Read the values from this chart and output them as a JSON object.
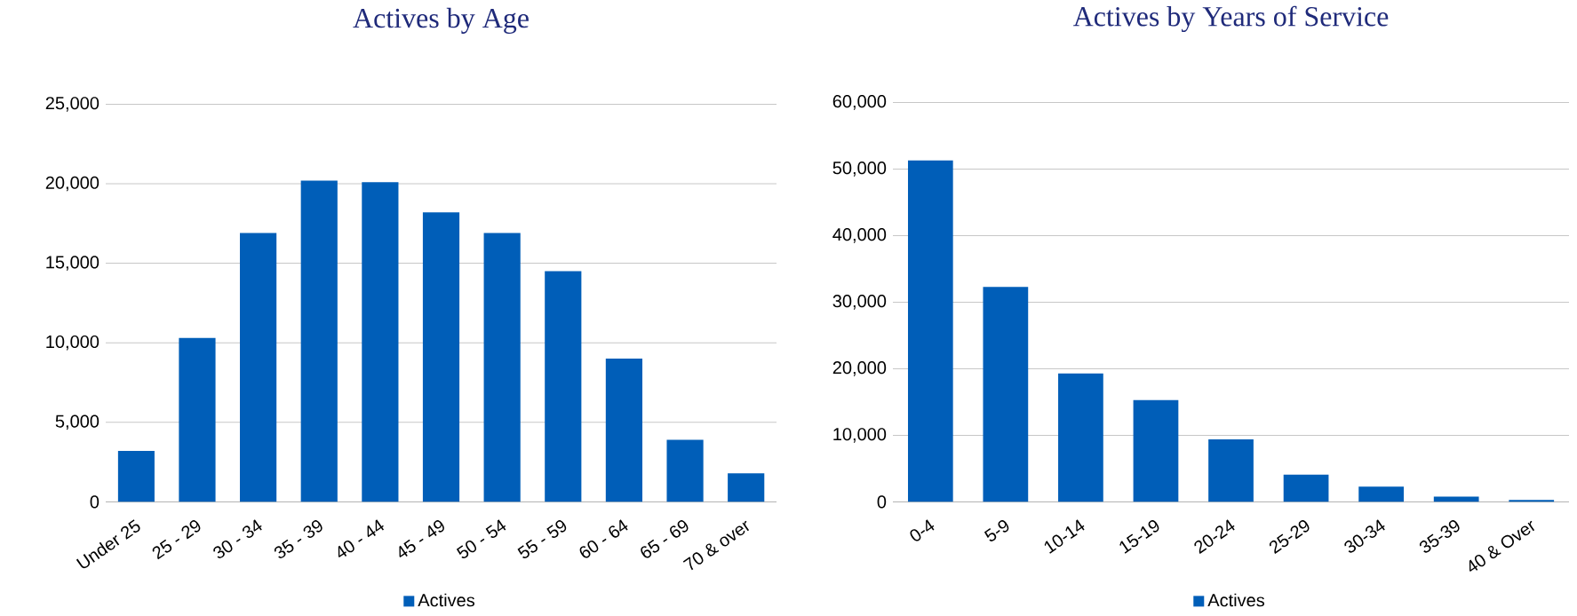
{
  "chart_data": [
    {
      "type": "bar",
      "title": "Actives by Age",
      "categories": [
        "Under 25",
        "25 - 29",
        "30 - 34",
        "35 - 39",
        "40 - 44",
        "45 - 49",
        "50 - 54",
        "55 - 59",
        "60 - 64",
        "65 - 69",
        "70 & over"
      ],
      "series": [
        {
          "name": "Actives",
          "color": "#005eb8",
          "values": [
            3200,
            10300,
            16900,
            20200,
            20100,
            18200,
            16900,
            14500,
            9000,
            3900,
            1800
          ]
        }
      ],
      "ylim": [
        0,
        25000
      ],
      "yticks": [
        0,
        {
          "value": 5000,
          "label": "5,000"
        },
        {
          "value": 10000,
          "label": "10,000"
        },
        {
          "value": 15000,
          "label": "15,000"
        },
        {
          "value": 20000,
          "label": "20,000"
        },
        {
          "value": 25000,
          "label": "25,000"
        }
      ],
      "grid": "y",
      "legend": "bottom"
    },
    {
      "type": "bar",
      "title": "Actives by Years of Service",
      "categories": [
        "0-4",
        "5-9",
        "10-14",
        "15-19",
        "20-24",
        "25-29",
        "30-34",
        "35-39",
        "40 & Over"
      ],
      "series": [
        {
          "name": "Actives",
          "color": "#005eb8",
          "values": [
            51300,
            32300,
            19300,
            15300,
            9400,
            4100,
            2300,
            800,
            300
          ]
        }
      ],
      "ylim": [
        0,
        60000
      ],
      "yticks": [
        0,
        {
          "value": 10000,
          "label": "10,000"
        },
        {
          "value": 20000,
          "label": "20,000"
        },
        {
          "value": 30000,
          "label": "30,000"
        },
        {
          "value": 40000,
          "label": "40,000"
        },
        {
          "value": 50000,
          "label": "50,000"
        },
        {
          "value": 60000,
          "label": "60,000"
        }
      ],
      "grid": "y",
      "legend": "bottom"
    }
  ]
}
